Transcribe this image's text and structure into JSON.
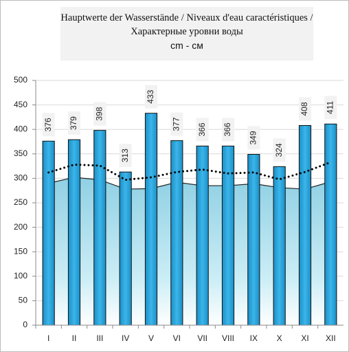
{
  "chart_data": {
    "type": "bar",
    "title": "Hauptwerte der Wasserstände / Niveaux d'eau caractéristiques / Характерные уровни воды",
    "subtitle": "cm - см",
    "categories": [
      "I",
      "II",
      "III",
      "IV",
      "V",
      "VI",
      "VII",
      "VIII",
      "IX",
      "X",
      "XI",
      "XII"
    ],
    "series": [
      {
        "kind": "bar",
        "color": "#29a3dc",
        "values": [
          376,
          379,
          398,
          313,
          433,
          377,
          366,
          366,
          349,
          324,
          408,
          411
        ]
      },
      {
        "kind": "area",
        "color": "#a9dcea",
        "values": [
          290,
          302,
          297,
          278,
          279,
          292,
          285,
          285,
          289,
          281,
          278,
          293
        ]
      },
      {
        "kind": "dotted-line",
        "color": "#000000",
        "values": [
          312,
          328,
          326,
          297,
          302,
          313,
          318,
          310,
          312,
          298,
          313,
          333
        ]
      }
    ],
    "ylim": [
      0,
      500
    ],
    "yticks": [
      0,
      50,
      100,
      150,
      200,
      250,
      300,
      350,
      400,
      450,
      500
    ],
    "grid": true
  }
}
